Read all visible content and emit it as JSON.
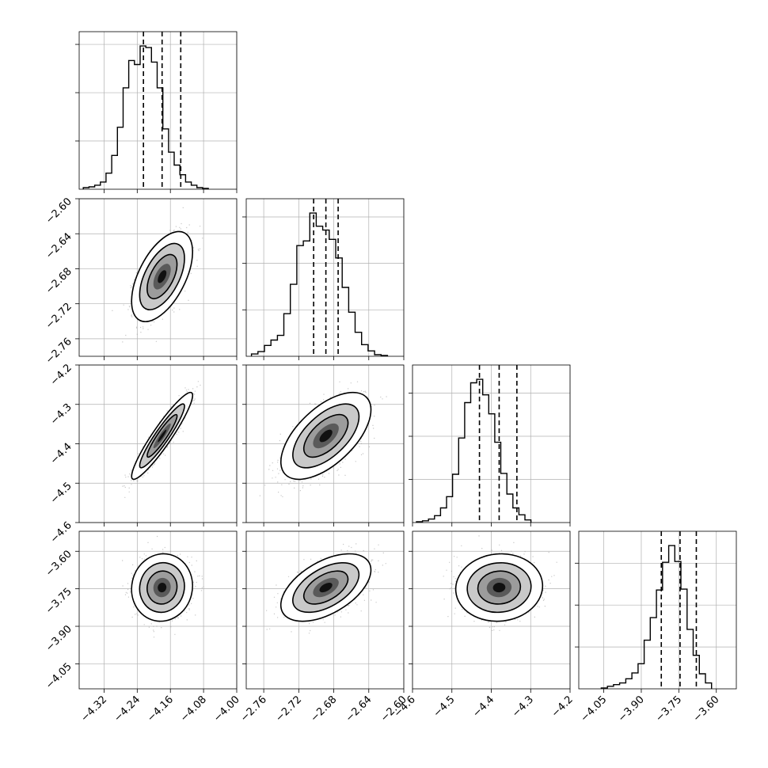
{
  "chart_data": {
    "type": "corner",
    "grid": true,
    "parameters": [
      {
        "index": 0,
        "range": [
          -4.38,
          -4.0
        ],
        "ticks": [
          -4.32,
          -4.24,
          -4.16,
          -4.08,
          -4.0
        ],
        "tick_labels": [
          "−4.32",
          "−4.24",
          "−4.16",
          "−4.08",
          "−4.00"
        ],
        "quantiles": [
          -4.225,
          -4.18,
          -4.135
        ],
        "histogram": {
          "start": -4.37,
          "bin_width": 0.0137,
          "counts": [
            2,
            3,
            5,
            9,
            20,
            42,
            77,
            126,
            160,
            155,
            178,
            176,
            158,
            126,
            75,
            46,
            30,
            18,
            9,
            5,
            2,
            1
          ]
        }
      },
      {
        "index": 1,
        "range": [
          -2.78,
          -2.6
        ],
        "ticks": [
          -2.76,
          -2.72,
          -2.68,
          -2.64,
          -2.6
        ],
        "tick_labels": [
          "−2.76",
          "−2.72",
          "−2.68",
          "−2.64",
          "−2.60"
        ],
        "quantiles": [
          -2.703,
          -2.689,
          -2.675
        ],
        "histogram": {
          "start": -2.774,
          "bin_width": 0.0074,
          "counts": [
            3,
            6,
            14,
            21,
            27,
            55,
            93,
            143,
            149,
            185,
            168,
            163,
            151,
            127,
            89,
            57,
            31,
            15,
            7,
            2,
            1
          ]
        }
      },
      {
        "index": 2,
        "range": [
          -4.6,
          -4.2
        ],
        "ticks": [
          -4.6,
          -4.5,
          -4.4,
          -4.3,
          -4.2
        ],
        "tick_labels": [
          "−4.6",
          "−4.5",
          "−4.4",
          "−4.3",
          "−4.2"
        ],
        "quantiles": [
          -4.43,
          -4.38,
          -4.335
        ],
        "histogram": {
          "start": -4.59,
          "bin_width": 0.0153,
          "counts": [
            1,
            2,
            4,
            8,
            17,
            30,
            56,
            98,
            139,
            162,
            166,
            148,
            126,
            93,
            57,
            33,
            17,
            9,
            3
          ]
        }
      },
      {
        "index": 3,
        "range": [
          -4.15,
          -3.52
        ],
        "ticks": [
          -4.05,
          -3.9,
          -3.75,
          -3.6
        ],
        "tick_labels": [
          "−4.05",
          "−3.90",
          "−3.75",
          "−3.60"
        ],
        "quantiles": [
          -3.82,
          -3.745,
          -3.68
        ],
        "histogram": {
          "start": -4.06,
          "bin_width": 0.0245,
          "counts": [
            1,
            3,
            5,
            7,
            12,
            19,
            30,
            58,
            85,
            118,
            151,
            171,
            152,
            119,
            71,
            40,
            18,
            7
          ]
        }
      }
    ],
    "pairs": [
      {
        "row": 1,
        "col": 0,
        "mean": [
          -4.18,
          -2.689
        ],
        "sd": [
          0.03,
          0.021
        ],
        "rho": 0.55
      },
      {
        "row": 2,
        "col": 0,
        "mean": [
          -4.18,
          -4.38
        ],
        "sd": [
          0.03,
          0.045
        ],
        "rho": 0.93
      },
      {
        "row": 2,
        "col": 1,
        "mean": [
          -2.689,
          -4.38
        ],
        "sd": [
          0.021,
          0.045
        ],
        "rho": 0.6
      },
      {
        "row": 3,
        "col": 0,
        "mean": [
          -4.18,
          -3.745
        ],
        "sd": [
          0.03,
          0.055
        ],
        "rho": 0.05
      },
      {
        "row": 3,
        "col": 1,
        "mean": [
          -2.689,
          -3.745
        ],
        "sd": [
          0.021,
          0.055
        ],
        "rho": 0.52
      },
      {
        "row": 3,
        "col": 2,
        "mean": [
          -4.38,
          -3.745
        ],
        "sd": [
          0.045,
          0.055
        ],
        "rho": 0.05
      }
    ],
    "colors": {
      "line": "#000000",
      "points": "#9a9a9a",
      "grid": "#b0b0b0"
    }
  }
}
